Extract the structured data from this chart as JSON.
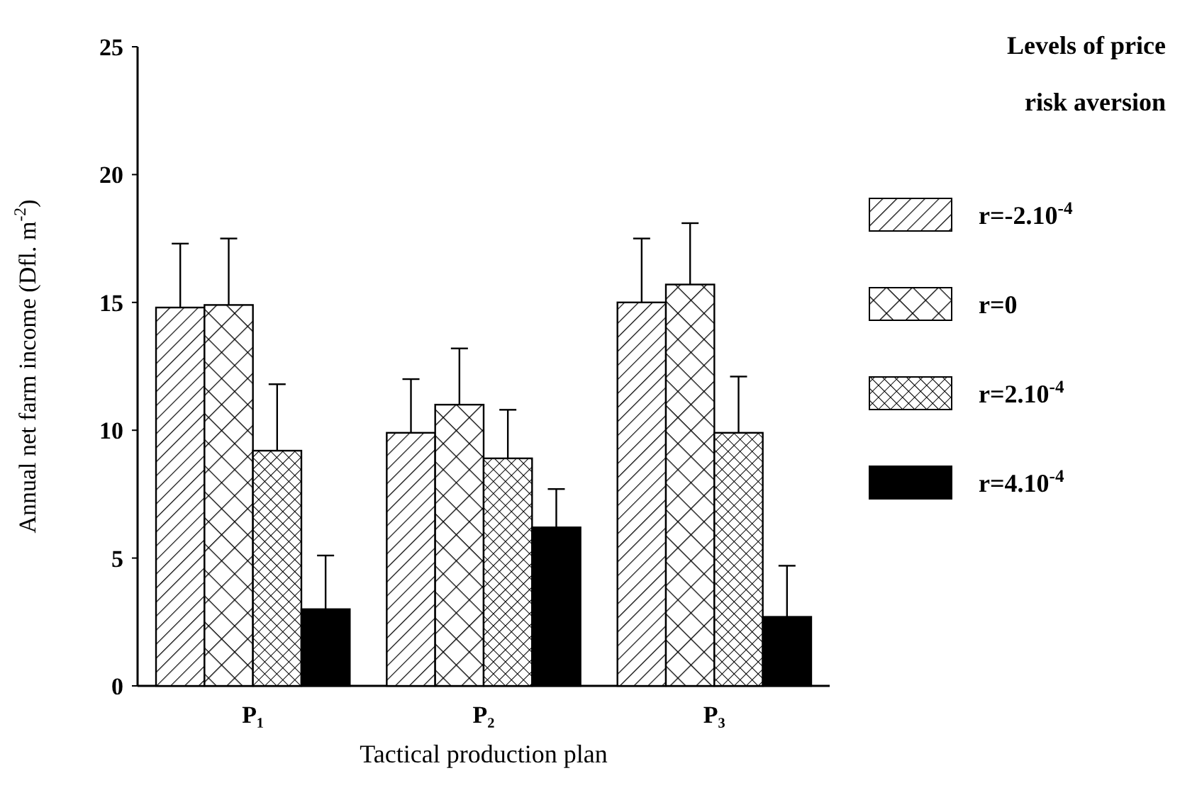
{
  "chart_data": {
    "type": "bar",
    "xlabel": "Tactical production plan",
    "ylabel": "Annual net farm income (Dfl. m$^{-2}$)",
    "legend_title": "Levels of price risk aversion",
    "categories": [
      "P₁",
      "P₂",
      "P₃"
    ],
    "series": [
      {
        "name": "r=-2.10$^{-4}$",
        "color": "#000000",
        "values": [
          14.8,
          9.9,
          15.0
        ],
        "errors": [
          [
            14.8,
            17.3
          ],
          [
            9.9,
            12.0
          ],
          [
            15.0,
            17.5
          ]
        ]
      },
      {
        "name": "r=0",
        "color": "#000000",
        "values": [
          14.9,
          11.0,
          15.7
        ],
        "errors": [
          [
            14.9,
            17.5
          ],
          [
            11.0,
            13.2
          ],
          [
            15.7,
            18.1
          ]
        ]
      },
      {
        "name": "r=2.10$^{-4}$",
        "color": "#000000",
        "values": [
          9.2,
          8.9,
          9.9
        ],
        "errors": [
          [
            9.2,
            11.8
          ],
          [
            8.9,
            10.8
          ],
          [
            9.9,
            12.1
          ]
        ]
      },
      {
        "name": "r=4.10$^{-4}$",
        "color": "#000000",
        "values": [
          3.0,
          6.2,
          2.7
        ],
        "errors": [
          [
            3.0,
            5.1
          ],
          [
            6.2,
            7.7
          ],
          [
            2.7,
            4.7
          ]
        ]
      }
    ],
    "ylim": [
      0,
      25
    ],
    "yticks": [
      0,
      5,
      10,
      15,
      20,
      25
    ],
    "legend": "right",
    "grid": false
  }
}
